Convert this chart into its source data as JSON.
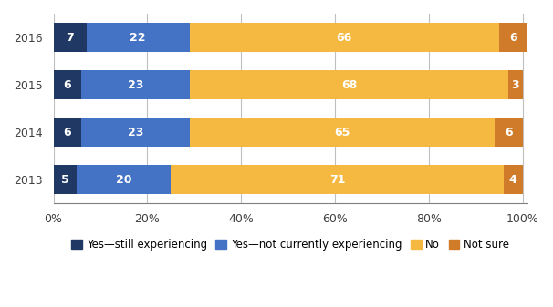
{
  "years": [
    "2016",
    "2015",
    "2014",
    "2013"
  ],
  "categories": [
    "Yes—still experiencing",
    "Yes—not currently experiencing",
    "No",
    "Not sure"
  ],
  "values": {
    "2016": [
      7,
      22,
      66,
      6
    ],
    "2015": [
      6,
      23,
      68,
      3
    ],
    "2014": [
      6,
      23,
      65,
      6
    ],
    "2013": [
      5,
      20,
      71,
      4
    ]
  },
  "colors": [
    "#1F3864",
    "#4472C4",
    "#F5B942",
    "#D07B2A"
  ],
  "bar_labels_color": "white",
  "no_bar_label_color": "#7F7F7F",
  "background_color": "#FFFFFF",
  "grid_color": "#BFBFBF",
  "xtick_labels": [
    "0%",
    "20%",
    "40%",
    "60%",
    "80%",
    "100%"
  ],
  "xtick_values": [
    0,
    20,
    40,
    60,
    80,
    100
  ],
  "bar_height": 0.62,
  "font_size_labels": 9,
  "font_size_ticks": 9,
  "font_size_legend": 8.5,
  "figsize": [
    6.06,
    3.37
  ],
  "dpi": 100
}
